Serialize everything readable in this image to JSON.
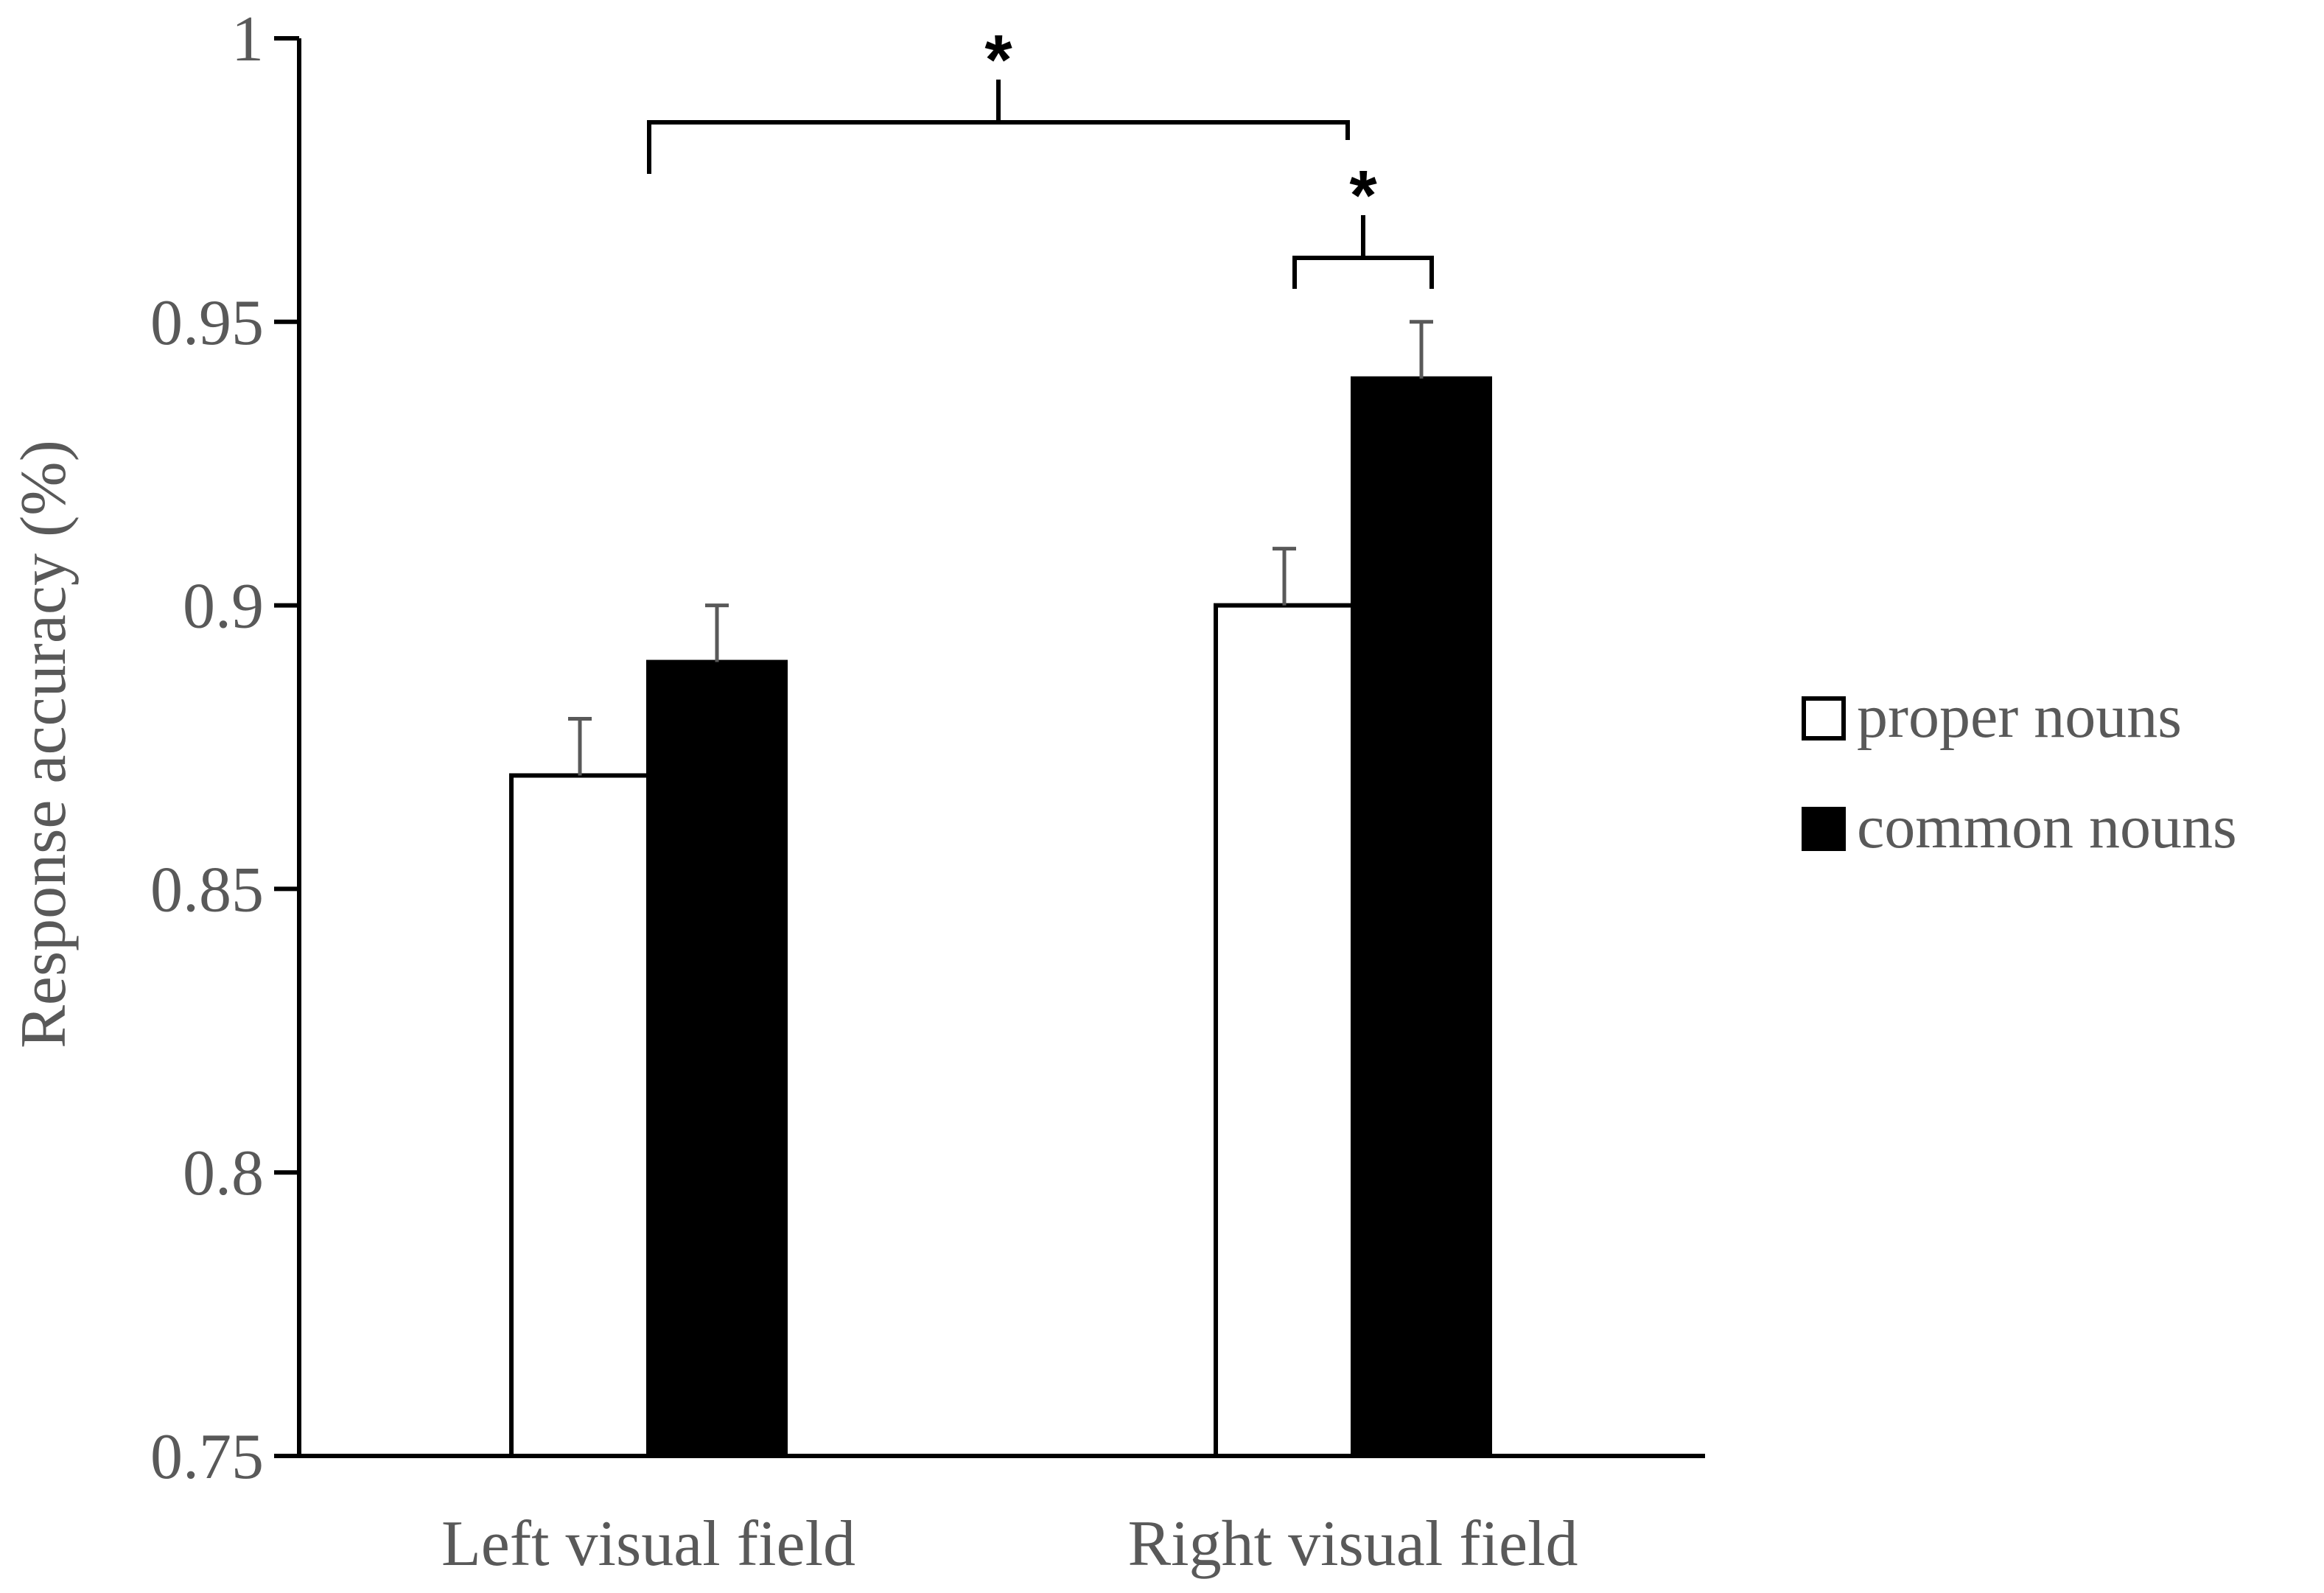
{
  "chart_data": {
    "type": "bar",
    "categories": [
      "Left visual field",
      "Right visual field"
    ],
    "series": [
      {
        "name": "proper nouns",
        "values": [
          0.87,
          0.9
        ],
        "errors": [
          0.01,
          0.01
        ],
        "fill": "#ffffff"
      },
      {
        "name": "common nouns",
        "values": [
          0.89,
          0.94
        ],
        "errors": [
          0.01,
          0.01
        ],
        "fill": "#000000"
      }
    ],
    "ylabel": "Response accuracy (%)",
    "xlabel": "",
    "ylim": [
      0.75,
      1
    ],
    "yticks": [
      "0.75",
      "0.8",
      "0.85",
      "0.9",
      "0.95",
      "1"
    ],
    "legend_position": "right",
    "significance": [
      {
        "label": "*",
        "between": "proper nouns Left visual field vs proper nouns Right visual field"
      },
      {
        "label": "*",
        "between": "proper nouns Right visual field vs common nouns Right visual field"
      }
    ]
  }
}
